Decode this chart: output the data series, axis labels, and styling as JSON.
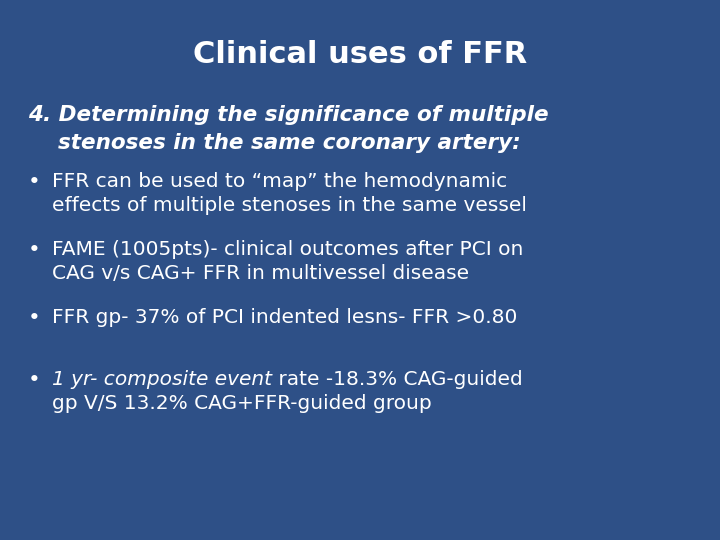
{
  "background_color": "#2e5087",
  "title": "Clinical uses of FFR",
  "title_color": "#ffffff",
  "title_fontsize": 22,
  "title_fontweight": "bold",
  "text_color": "#ffffff",
  "heading_line1": "4. Determining the significance of multiple",
  "heading_line2": "    stenoses in the same coronary artery:",
  "heading_fontsize": 15.5,
  "bullet_fontsize": 14.5,
  "bullet_symbol": "•",
  "bullets": [
    {
      "type": "normal2",
      "line1": "FFR can be used to “map” the hemodynamic",
      "line2": "effects of multiple stenoses in the same vessel"
    },
    {
      "type": "normal2",
      "line1": "FAME (1005pts)- clinical outcomes after PCI on",
      "line2": "CAG v/s CAG+ FFR in multivessel disease"
    },
    {
      "type": "normal1",
      "line1": "FFR gp- 37% of PCI indented lesns- FFR >0.80",
      "line2": null
    },
    {
      "type": "mixed2",
      "italic_part": "1 yr- composite event",
      "normal_part": " rate -18.3% CAG-guided",
      "line2": "gp V/S 13.2% CAG+FFR-guided group"
    }
  ]
}
